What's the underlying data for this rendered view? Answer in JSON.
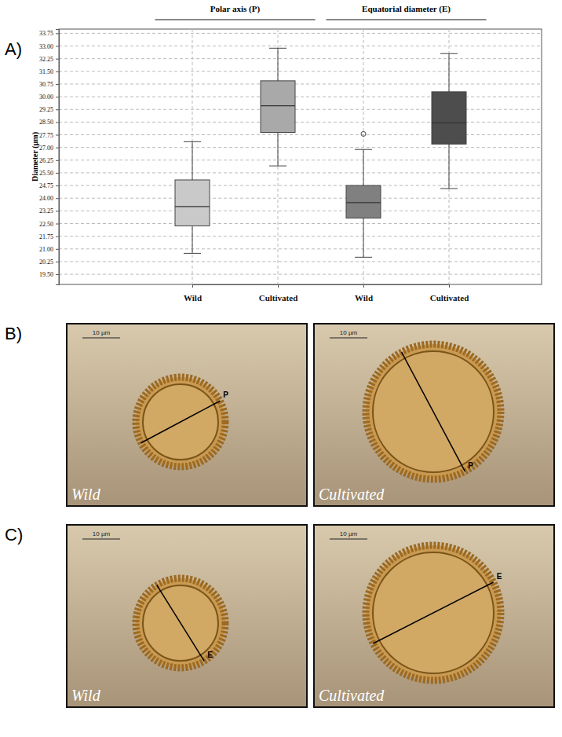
{
  "chart_data": {
    "type": "box",
    "ylabel": "Diameter (µm)",
    "categories": [
      "Wild",
      "Cultivated"
    ],
    "series": [
      {
        "name": "Polar axis (P)",
        "colors": [
          "#c9c9c9",
          "#a9a9a9"
        ],
        "values": [
          {
            "min": 20.74,
            "q1": 22.36,
            "median": 23.51,
            "q3": 25.08,
            "max": 27.34,
            "outliers": []
          },
          {
            "min": 25.91,
            "q1": 27.89,
            "median": 29.46,
            "q3": 30.94,
            "max": 32.87,
            "outliers": []
          }
        ]
      },
      {
        "name": "Equatorial diameter (E)",
        "colors": [
          "#808080",
          "#4d4d4d"
        ],
        "values": [
          {
            "min": 20.51,
            "q1": 22.82,
            "median": 23.74,
            "q3": 24.75,
            "max": 26.88,
            "outliers": [
              27.8
            ]
          },
          {
            "min": 24.57,
            "q1": 27.2,
            "median": 28.45,
            "q3": 30.29,
            "max": 32.55,
            "outliers": []
          }
        ]
      }
    ],
    "ylim": [
      18.9,
      34.0
    ],
    "yticks": [
      {
        "value": 19.5,
        "label": "19.50"
      },
      20.25,
      {
        "value": 21,
        "label": "21.00"
      },
      21.75,
      {
        "value": 22.5,
        "label": "22.50"
      },
      23.25,
      {
        "value": 24,
        "label": "24.00"
      },
      24.75,
      {
        "value": 25.5,
        "label": "25.50"
      },
      26.25,
      {
        "value": 27,
        "label": "27.00"
      },
      27.75,
      {
        "value": 28.5,
        "label": "28.50"
      },
      29.25,
      {
        "value": 30,
        "label": "30.00"
      },
      30.75,
      {
        "value": 31.5,
        "label": "31.50"
      },
      32.25,
      {
        "value": 33,
        "label": "33.00"
      },
      33.75
    ],
    "grid": true
  },
  "panel_labels": [
    "A)",
    "B)",
    "C)"
  ],
  "micrographs": [
    {
      "measure": "P",
      "images": [
        {
          "label": "Wild",
          "scale_bar": "10 µm"
        },
        {
          "label": "Cultivated",
          "scale_bar": "10 µm"
        }
      ]
    },
    {
      "measure": "E",
      "images": [
        {
          "label": "Wild",
          "scale_bar": "10 µm"
        },
        {
          "label": "Cultivated",
          "scale_bar": "10 µm"
        }
      ]
    }
  ]
}
